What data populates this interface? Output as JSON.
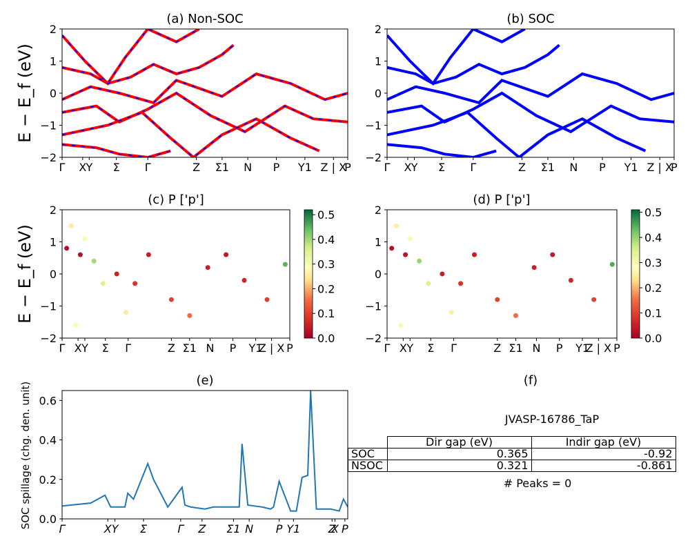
{
  "chart_data": [
    {
      "panel": "a",
      "type": "line",
      "title": "(a) Non-SOC",
      "ylabel": "E − E_f (eV)",
      "ylim": [
        -2,
        2
      ],
      "y_ticks": [
        "2",
        "1",
        "0",
        "−1",
        "−2"
      ],
      "x_ticks": [
        "Γ",
        "X",
        "Y",
        "Σ",
        "Γ",
        "Z",
        "Σ1",
        "N",
        "P",
        "Y1",
        "Z | X",
        "P"
      ],
      "colors": {
        "line": "#ff0000",
        "overlay": "#0000ff"
      },
      "bands": [
        {
          "x": [
            0,
            0.4,
            0.8,
            1.1,
            1.5,
            2.0,
            2.4
          ],
          "y": [
            1.8,
            1.0,
            0.3,
            1.1,
            2.0,
            1.6,
            2.0
          ]
        },
        {
          "x": [
            0,
            0.5,
            0.8,
            1.2,
            1.6,
            2.0,
            2.4,
            2.8,
            3.0
          ],
          "y": [
            0.8,
            0.6,
            0.3,
            0.5,
            0.9,
            0.6,
            0.8,
            1.2,
            1.5
          ]
        },
        {
          "x": [
            0,
            0.5,
            1.0,
            1.6,
            2.0,
            2.8,
            3.4,
            4.0,
            4.6,
            5.0
          ],
          "y": [
            -0.2,
            0.2,
            0.0,
            -0.3,
            0.4,
            -0.1,
            0.6,
            0.3,
            -0.2,
            0.0
          ]
        },
        {
          "x": [
            0,
            0.6,
            1.0,
            1.5,
            2.0,
            2.6,
            3.2,
            3.9,
            4.4,
            5.0
          ],
          "y": [
            -0.6,
            -0.4,
            -0.9,
            -0.5,
            0.0,
            -0.7,
            -1.2,
            -0.4,
            -0.8,
            -0.9
          ]
        },
        {
          "x": [
            0,
            0.8,
            1.4,
            1.9,
            2.3,
            2.8,
            3.4,
            4.0,
            4.5
          ],
          "y": [
            -1.3,
            -1.0,
            -0.6,
            -1.4,
            -2.0,
            -1.3,
            -0.8,
            -1.4,
            -1.8
          ]
        },
        {
          "x": [
            0,
            0.6,
            1.0,
            1.5,
            1.9
          ],
          "y": [
            -1.6,
            -1.7,
            -1.9,
            -2.0,
            -1.8
          ]
        }
      ]
    },
    {
      "panel": "b",
      "type": "line",
      "title": "(b) SOC",
      "ylim": [
        -2,
        2
      ],
      "y_ticks": [
        "2",
        "1",
        "0",
        "−1",
        "−2"
      ],
      "x_ticks": [
        "Γ",
        "X",
        "Y",
        "Σ",
        "Γ",
        "Z",
        "Σ1",
        "N",
        "P",
        "Y1",
        "Z | X",
        "P"
      ],
      "colors": {
        "line": "#0000ff"
      },
      "bands": [
        {
          "x": [
            0,
            0.4,
            0.8,
            1.1,
            1.5,
            2.0,
            2.4
          ],
          "y": [
            1.8,
            1.0,
            0.3,
            1.1,
            2.0,
            1.6,
            2.0
          ]
        },
        {
          "x": [
            0,
            0.5,
            0.8,
            1.2,
            1.6,
            2.0,
            2.4,
            2.8,
            3.0
          ],
          "y": [
            0.8,
            0.6,
            0.3,
            0.5,
            0.9,
            0.6,
            0.8,
            1.2,
            1.5
          ]
        },
        {
          "x": [
            0,
            0.5,
            1.0,
            1.6,
            2.0,
            2.8,
            3.4,
            4.0,
            4.6,
            5.0
          ],
          "y": [
            -0.2,
            0.2,
            0.0,
            -0.3,
            0.4,
            -0.1,
            0.6,
            0.3,
            -0.2,
            0.0
          ]
        },
        {
          "x": [
            0,
            0.6,
            1.0,
            1.5,
            2.0,
            2.6,
            3.2,
            3.9,
            4.4,
            5.0
          ],
          "y": [
            -0.6,
            -0.4,
            -0.9,
            -0.5,
            0.0,
            -0.7,
            -1.2,
            -0.4,
            -0.8,
            -0.9
          ]
        },
        {
          "x": [
            0,
            0.8,
            1.4,
            1.9,
            2.3,
            2.8,
            3.4,
            4.0,
            4.5
          ],
          "y": [
            -1.3,
            -1.0,
            -0.6,
            -1.4,
            -2.0,
            -1.3,
            -0.8,
            -1.4,
            -1.8
          ]
        },
        {
          "x": [
            0,
            0.6,
            1.0,
            1.5,
            1.9
          ],
          "y": [
            -1.6,
            -1.7,
            -1.9,
            -2.0,
            -1.8
          ]
        }
      ]
    },
    {
      "panel": "c",
      "type": "scatter",
      "title": "(c)  P ['p']",
      "ylabel": "E − E_f (eV)",
      "ylim": [
        -2,
        2
      ],
      "y_ticks": [
        "2",
        "1",
        "0",
        "−1",
        "−2"
      ],
      "x_ticks": [
        "Γ",
        "X",
        "Y",
        "Σ",
        "Γ",
        "Z",
        "Σ1",
        "N",
        "P",
        "Y1",
        "Z | X",
        "P"
      ],
      "colorbar": {
        "min": 0.0,
        "max": 0.52,
        "ticks": [
          "0.0",
          "0.1",
          "0.2",
          "0.3",
          "0.4",
          "0.5"
        ]
      },
      "points": [
        {
          "x": 0.1,
          "y": 0.8,
          "v": 0.02
        },
        {
          "x": 0.4,
          "y": 0.6,
          "v": 0.03
        },
        {
          "x": 0.7,
          "y": 0.4,
          "v": 0.4
        },
        {
          "x": 0.2,
          "y": 1.5,
          "v": 0.25
        },
        {
          "x": 0.5,
          "y": 1.1,
          "v": 0.3
        },
        {
          "x": 0.9,
          "y": -0.3,
          "v": 0.35
        },
        {
          "x": 1.2,
          "y": 0.0,
          "v": 0.05
        },
        {
          "x": 1.6,
          "y": -0.3,
          "v": 0.08
        },
        {
          "x": 1.9,
          "y": 0.6,
          "v": 0.05
        },
        {
          "x": 2.4,
          "y": -0.8,
          "v": 0.1
        },
        {
          "x": 2.8,
          "y": -1.3,
          "v": 0.15
        },
        {
          "x": 3.2,
          "y": 0.2,
          "v": 0.05
        },
        {
          "x": 3.6,
          "y": 0.6,
          "v": 0.04
        },
        {
          "x": 4.0,
          "y": -0.2,
          "v": 0.06
        },
        {
          "x": 4.5,
          "y": -0.8,
          "v": 0.1
        },
        {
          "x": 4.9,
          "y": 0.3,
          "v": 0.45
        },
        {
          "x": 0.3,
          "y": -1.6,
          "v": 0.3
        },
        {
          "x": 1.4,
          "y": -1.2,
          "v": 0.25
        }
      ]
    },
    {
      "panel": "d",
      "type": "scatter",
      "title": "(d) P ['p']",
      "ylim": [
        -2,
        2
      ],
      "y_ticks": [
        "2",
        "1",
        "0",
        "−1",
        "−2"
      ],
      "x_ticks": [
        "Γ",
        "X",
        "Y",
        "Σ",
        "Γ",
        "Z",
        "Σ1",
        "N",
        "P",
        "Y1",
        "Z | X",
        "P"
      ],
      "colorbar": {
        "min": 0.0,
        "max": 0.51,
        "ticks": [
          "0.0",
          "0.1",
          "0.2",
          "0.3",
          "0.4",
          "0.5"
        ]
      },
      "points": [
        {
          "x": 0.1,
          "y": 0.8,
          "v": 0.02
        },
        {
          "x": 0.4,
          "y": 0.6,
          "v": 0.03
        },
        {
          "x": 0.7,
          "y": 0.4,
          "v": 0.4
        },
        {
          "x": 0.2,
          "y": 1.5,
          "v": 0.25
        },
        {
          "x": 0.5,
          "y": 1.1,
          "v": 0.3
        },
        {
          "x": 0.9,
          "y": -0.3,
          "v": 0.35
        },
        {
          "x": 1.2,
          "y": 0.0,
          "v": 0.05
        },
        {
          "x": 1.6,
          "y": -0.3,
          "v": 0.08
        },
        {
          "x": 1.9,
          "y": 0.6,
          "v": 0.05
        },
        {
          "x": 2.4,
          "y": -0.8,
          "v": 0.1
        },
        {
          "x": 2.8,
          "y": -1.3,
          "v": 0.15
        },
        {
          "x": 3.2,
          "y": 0.2,
          "v": 0.05
        },
        {
          "x": 3.6,
          "y": 0.6,
          "v": 0.04
        },
        {
          "x": 4.0,
          "y": -0.2,
          "v": 0.06
        },
        {
          "x": 4.5,
          "y": -0.8,
          "v": 0.1
        },
        {
          "x": 4.9,
          "y": 0.3,
          "v": 0.45
        },
        {
          "x": 0.3,
          "y": -1.6,
          "v": 0.3
        },
        {
          "x": 1.4,
          "y": -1.2,
          "v": 0.25
        }
      ]
    },
    {
      "panel": "e",
      "type": "line",
      "title": "(e)",
      "ylabel": "SOC spillage (chg. den. unit)",
      "ylim": [
        0,
        0.65
      ],
      "y_ticks": [
        "0.0",
        "0.2",
        "0.4",
        "0.6"
      ],
      "x_ticks": [
        "Γ",
        "X",
        "Y",
        "Σ",
        "Γ",
        "Z",
        "Σ1",
        "N",
        "P",
        "Y1",
        "Z",
        "X",
        "P"
      ],
      "colors": {
        "line": "#1f77b4"
      },
      "x": [
        0,
        0.03,
        0.1,
        0.15,
        0.17,
        0.22,
        0.23,
        0.25,
        0.3,
        0.32,
        0.37,
        0.42,
        0.43,
        0.45,
        0.5,
        0.53,
        0.59,
        0.62,
        0.63,
        0.65,
        0.7,
        0.73,
        0.74,
        0.76,
        0.8,
        0.82,
        0.84,
        0.86,
        0.87,
        0.89,
        0.94,
        0.97,
        0.985,
        1.0
      ],
      "y": [
        0.065,
        0.07,
        0.08,
        0.12,
        0.06,
        0.06,
        0.13,
        0.1,
        0.28,
        0.2,
        0.06,
        0.16,
        0.07,
        0.06,
        0.05,
        0.06,
        0.06,
        0.06,
        0.38,
        0.07,
        0.06,
        0.05,
        0.06,
        0.19,
        0.04,
        0.04,
        0.21,
        0.22,
        0.65,
        0.05,
        0.05,
        0.04,
        0.1,
        0.06
      ]
    },
    {
      "panel": "f",
      "type": "table",
      "title": "(f)",
      "subtitle": "JVASP-16786_TaP",
      "columns": [
        "Dir gap (eV)",
        "Indir gap (eV)"
      ],
      "rows": [
        {
          "label": "SOC",
          "values": [
            "0.365",
            "-0.92"
          ]
        },
        {
          "label": "NSOC",
          "values": [
            "0.321",
            "-0.861"
          ]
        }
      ],
      "footer": "# Peaks = 0"
    }
  ]
}
